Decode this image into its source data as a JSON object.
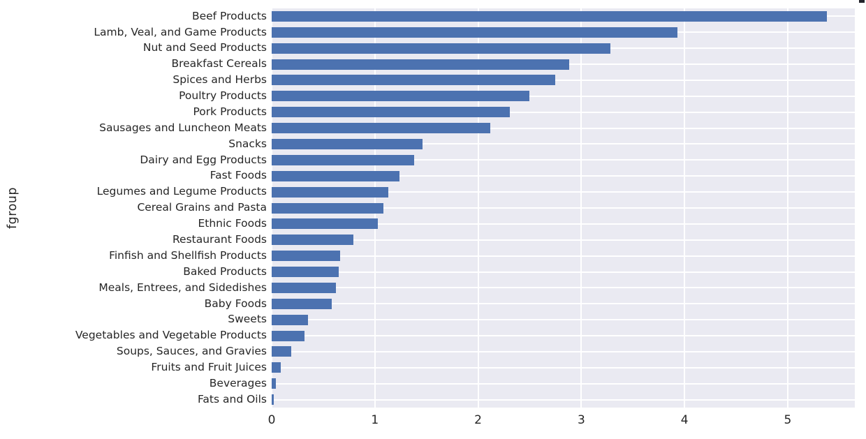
{
  "figure": {
    "background": "#ffffff",
    "y_axis_label": "fgroup"
  },
  "chart_data": {
    "type": "bar",
    "orientation": "horizontal",
    "title": "",
    "xlabel": "",
    "ylabel": "fgroup",
    "xlim": [
      0,
      5.65
    ],
    "xticks": [
      0,
      1,
      2,
      3,
      4,
      5
    ],
    "grid": true,
    "legend": false,
    "plot_background": "#eaeaf2",
    "gridline_color": "#ffffff",
    "bar_color": "#4c72b0",
    "text_color": "#262626",
    "categories": [
      "Beef Products",
      "Lamb, Veal, and Game Products",
      "Nut and Seed Products",
      "Breakfast Cereals",
      "Spices and Herbs",
      "Poultry Products",
      "Pork Products",
      "Sausages and Luncheon Meats",
      "Snacks",
      "Dairy and Egg Products",
      "Fast Foods",
      "Legumes and Legume Products",
      "Cereal Grains and Pasta",
      "Ethnic Foods",
      "Restaurant Foods",
      "Finfish and Shellfish Products",
      "Baked Products",
      "Meals, Entrees, and Sidedishes",
      "Baby Foods",
      "Sweets",
      "Vegetables and Vegetable Products",
      "Soups, Sauces, and Gravies",
      "Fruits and Fruit Juices",
      "Beverages",
      "Fats and Oils"
    ],
    "values": [
      5.38,
      3.93,
      3.28,
      2.88,
      2.75,
      2.5,
      2.31,
      2.12,
      1.46,
      1.38,
      1.24,
      1.13,
      1.08,
      1.03,
      0.79,
      0.66,
      0.65,
      0.62,
      0.58,
      0.35,
      0.32,
      0.19,
      0.09,
      0.04,
      0.02
    ]
  }
}
